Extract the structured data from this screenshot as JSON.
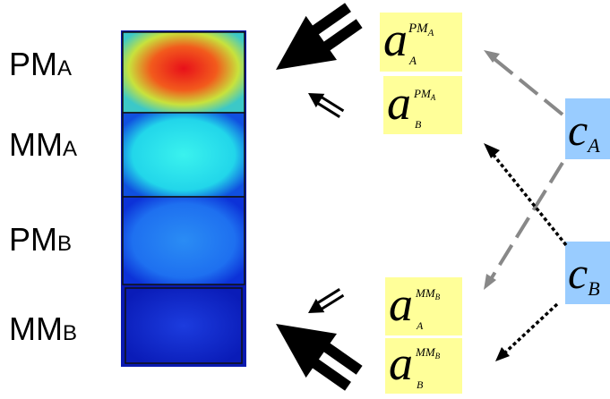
{
  "rows": [
    {
      "main": "PM",
      "sub": "A"
    },
    {
      "main": "MM",
      "sub": "A"
    },
    {
      "main": "PM",
      "sub": "B"
    },
    {
      "main": "MM",
      "sub": "B"
    }
  ],
  "terms": [
    {
      "base": "a",
      "sup": "PM",
      "sup_sub": "A",
      "sub": "A"
    },
    {
      "base": "a",
      "sup": "PM",
      "sup_sub": "A",
      "sub": "B"
    },
    {
      "base": "a",
      "sup": "MM",
      "sup_sub": "B",
      "sub": "A"
    },
    {
      "base": "a",
      "sup": "MM",
      "sup_sub": "B",
      "sub": "B"
    }
  ],
  "sources": [
    {
      "base": "c",
      "sub": "A"
    },
    {
      "base": "c",
      "sub": "B"
    }
  ]
}
